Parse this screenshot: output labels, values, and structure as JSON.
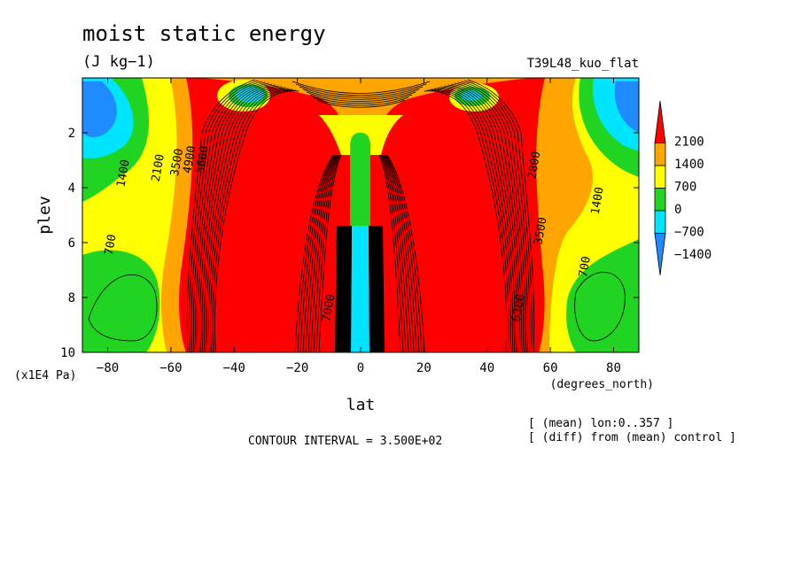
{
  "chart_data": {
    "type": "heatmap",
    "title": "moist static energy",
    "units": "(J kg−1)",
    "experiment": "T39L48_kuo_flat",
    "xlabel": "lat",
    "xunits": "(degrees_north)",
    "ylabel": "plev",
    "yunits": "(x1E4 Pa)",
    "xlim": [
      -88,
      88
    ],
    "ylim": [
      10,
      0
    ],
    "x_ticks": [
      -80,
      -60,
      -40,
      -20,
      0,
      20,
      40,
      60,
      80
    ],
    "x_tick_labels": [
      "−80",
      "−60",
      "−40",
      "−20",
      "0",
      "20",
      "40",
      "60",
      "80"
    ],
    "y_ticks": [
      2,
      4,
      6,
      8,
      10
    ],
    "y_tick_labels": [
      "2",
      "4",
      "6",
      "8",
      "10"
    ],
    "colorbar": {
      "levels": [
        -2100,
        -1400,
        -700,
        0,
        700,
        1400,
        2100,
        2800
      ],
      "labels": [
        "2100",
        "1400",
        "700",
        "0",
        "−700",
        "−1400"
      ],
      "colors": [
        "#1e8cff",
        "#00e5ff",
        "#22d422",
        "#ffff00",
        "#ffa500",
        "#ff0000"
      ]
    },
    "contour_labels": [
      {
        "lat": -74,
        "p": 3.5,
        "text": "1400"
      },
      {
        "lat": -78,
        "p": 6.1,
        "text": "700"
      },
      {
        "lat": -63,
        "p": 3.3,
        "text": "2100"
      },
      {
        "lat": -57,
        "p": 3.1,
        "text": "3500"
      },
      {
        "lat": -53,
        "p": 3.0,
        "text": "4900"
      },
      {
        "lat": -49,
        "p": 3.0,
        "text": "5600"
      },
      {
        "lat": 56,
        "p": 3.2,
        "text": "2800"
      },
      {
        "lat": 76,
        "p": 4.5,
        "text": "1400"
      },
      {
        "lat": 72,
        "p": 6.9,
        "text": "700"
      },
      {
        "lat": 58,
        "p": 5.6,
        "text": "3500"
      },
      {
        "lat": -9,
        "p": 8.4,
        "text": "7000"
      },
      {
        "lat": 51,
        "p": 8.4,
        "text": "6300"
      }
    ],
    "footer": {
      "contour_interval": "CONTOUR INTERVAL = 3.500E+02",
      "note1": "[ (mean) lon:0..357 ]",
      "note2": "[ (diff) from (mean) control ]"
    }
  }
}
